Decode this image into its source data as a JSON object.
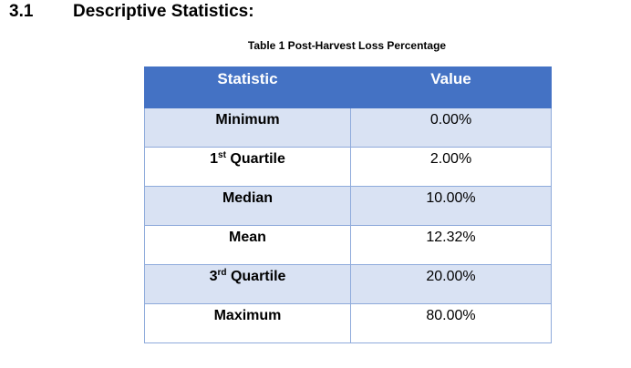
{
  "section": {
    "number": "3.1",
    "title": "Descriptive Statistics:"
  },
  "table": {
    "caption": "Table 1 Post-Harvest Loss Percentage",
    "headers": {
      "statistic": "Statistic",
      "value": "Value"
    },
    "rows": [
      {
        "statistic": "Minimum",
        "value": "0.00%"
      },
      {
        "statistic_main": "1",
        "statistic_sup": "st",
        "statistic_rest": " Quartile",
        "value": "2.00%"
      },
      {
        "statistic": "Median",
        "value": "10.00%"
      },
      {
        "statistic": "Mean",
        "value": "12.32%"
      },
      {
        "statistic_main": "3",
        "statistic_sup": "rd",
        "statistic_rest": " Quartile",
        "value": "20.00%"
      },
      {
        "statistic": "Maximum",
        "value": "80.00%"
      }
    ]
  }
}
